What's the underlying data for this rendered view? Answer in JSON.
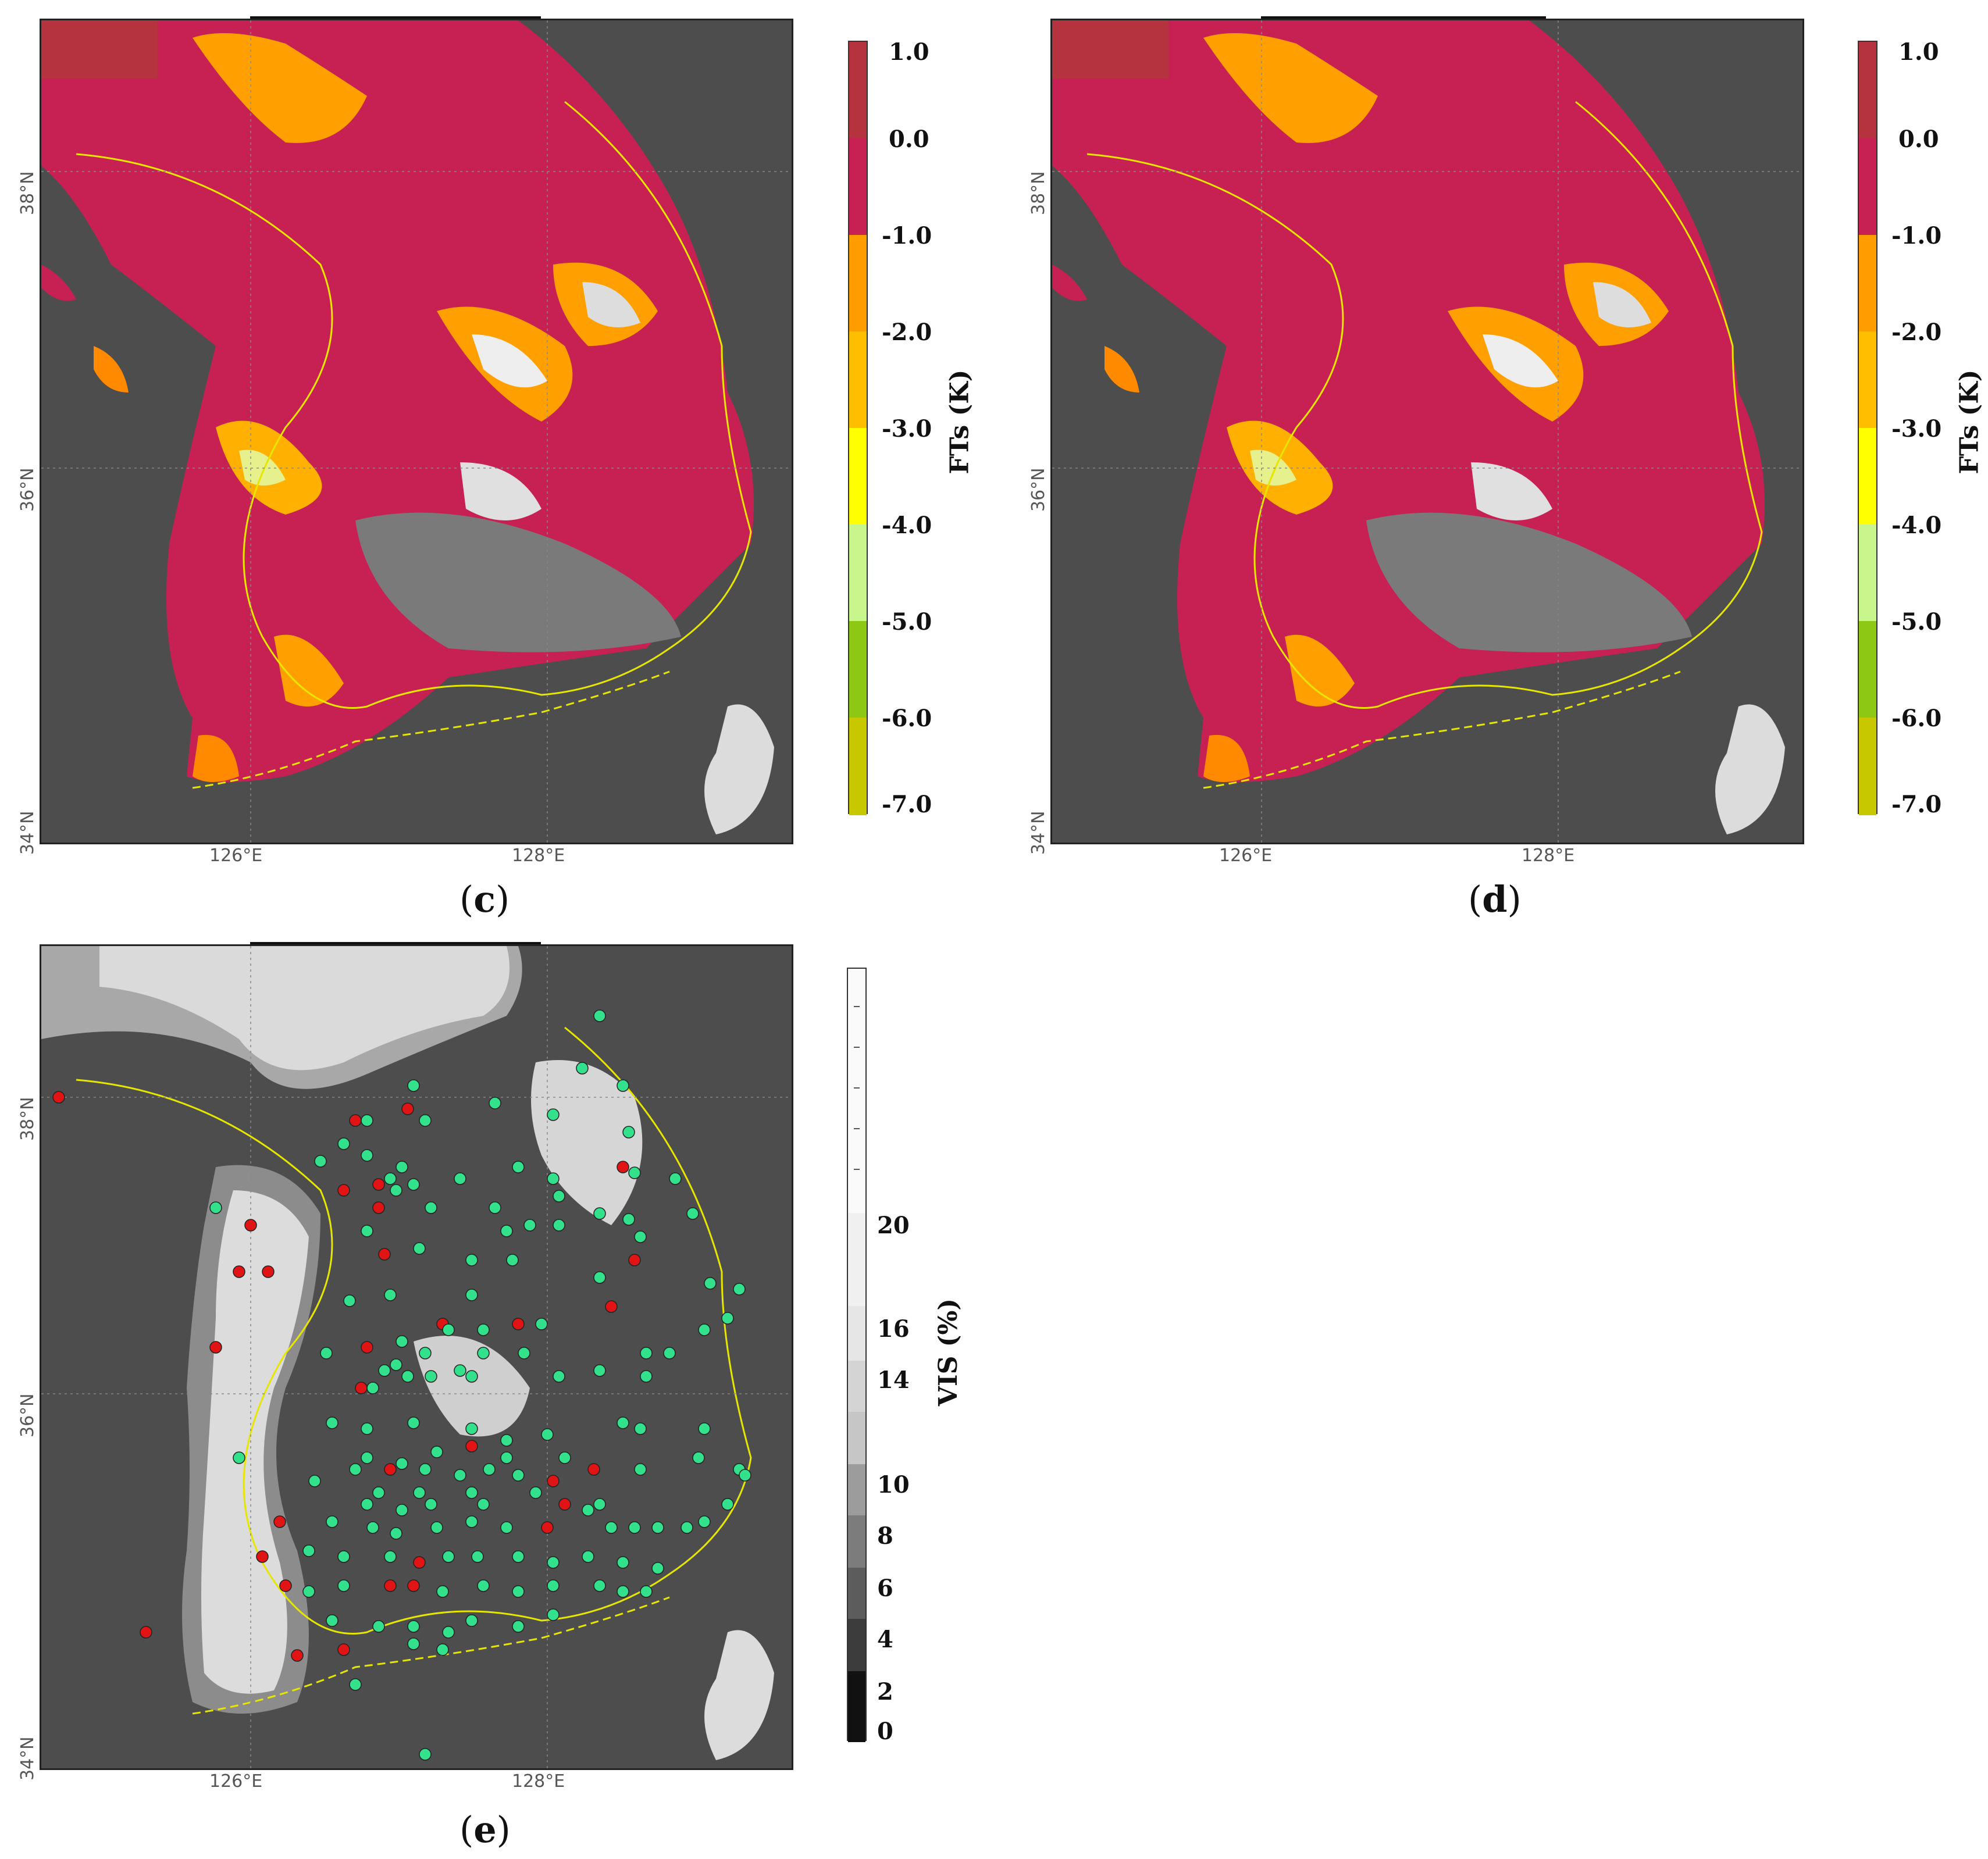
{
  "panels": [
    {
      "id": "c",
      "caption": "c",
      "lat_labels": [
        "38°N",
        "36°N",
        "34°N"
      ],
      "lon_labels": [
        "126°E",
        "128°E"
      ]
    },
    {
      "id": "d",
      "caption": "d",
      "lat_labels": [
        "38°N",
        "36°N",
        "34°N"
      ],
      "lon_labels": [
        "126°E",
        "128°E"
      ]
    },
    {
      "id": "e",
      "caption": "e",
      "lat_labels": [
        "38°N",
        "36°N",
        "34°N"
      ],
      "lon_labels": [
        "126°E",
        "128°E"
      ]
    }
  ],
  "fts_colorbar": {
    "label": "FTs (K)",
    "ticks": [
      "1.0",
      "0.0",
      "-1.0",
      "-2.0",
      "-3.0",
      "-4.0",
      "-5.0",
      "-6.0",
      "-7.0"
    ],
    "colors": [
      "#b5333f",
      "#c72154",
      "#ff9d00",
      "#ffbf00",
      "#ffff00",
      "#c8f58c",
      "#8cc814",
      "#c8c800"
    ]
  },
  "vis_colorbar": {
    "label": "VIS (%)",
    "ticks": [
      "20",
      "16",
      "14",
      "10",
      "8",
      "6",
      "4",
      "2",
      "0"
    ]
  },
  "colors": {
    "cloud_free_negative": "#c72154",
    "cloud_free_positive": "#b5333f",
    "background_gray": "#4d4d4d",
    "coastline": "#e6e600",
    "station_clear": "#33e08c",
    "station_fog": "#e01414"
  }
}
